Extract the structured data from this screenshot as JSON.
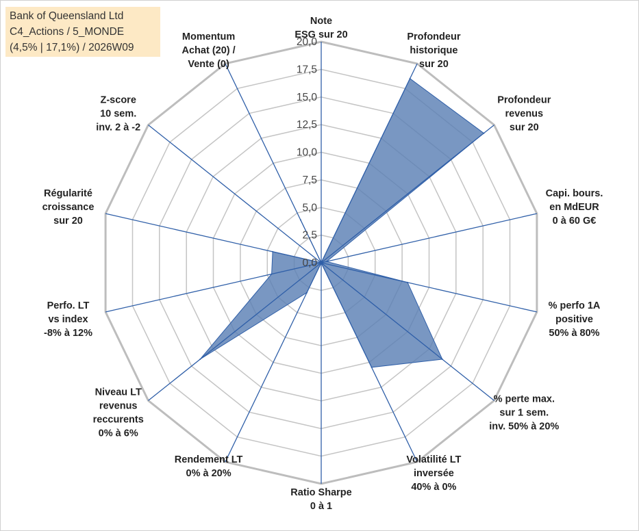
{
  "title_box": {
    "line1": "Bank of Queensland Ltd",
    "line2": "C4_Actions / 5_MONDE",
    "line3": "(4,5% | 17,1%) / 2026W09"
  },
  "colors": {
    "fill": "#5b80b5",
    "axis": "#2f5fa8",
    "grid": "#c4c4c4",
    "ring": "#bdbdbd"
  },
  "chart_data": {
    "type": "radar",
    "r_min": 0,
    "r_max": 20,
    "tick_labels": [
      "0,0",
      "2,5",
      "5,0",
      "7,5",
      "10,0",
      "12,5",
      "15,0",
      "17,5",
      "20,0"
    ],
    "axes": [
      {
        "lines": [
          "Note",
          "ESG sur 20"
        ],
        "value": 0
      },
      {
        "lines": [
          "Profondeur",
          "historique",
          "sur 20"
        ],
        "value": 18.5
      },
      {
        "lines": [
          "Profondeur",
          "revenus",
          "sur 20"
        ],
        "value": 18.8
      },
      {
        "lines": [
          "Capi. bours.",
          "en MdEUR",
          "0 à 60 G€"
        ],
        "value": 0.5
      },
      {
        "lines": [
          "% perfo 1A",
          "positive",
          "50% à 80%"
        ],
        "value": 8
      },
      {
        "lines": [
          "% perte max.",
          "sur 1 sem.",
          "inv. 50% à 20%"
        ],
        "value": 14
      },
      {
        "lines": [
          "Volatilité LT",
          "inversée",
          "40% à 0%"
        ],
        "value": 10.5
      },
      {
        "lines": [
          "Ratio Sharpe",
          "0 à 1"
        ],
        "value": 0
      },
      {
        "lines": [
          "Rendement LT",
          "0% à 20%"
        ],
        "value": 3
      },
      {
        "lines": [
          "Niveau LT",
          "revenus",
          "reccurents",
          "0% à 6%"
        ],
        "value": 14
      },
      {
        "lines": [
          "Perfo. LT",
          "vs index",
          "-8% à 12%"
        ],
        "value": 4.6
      },
      {
        "lines": [
          "Régularité",
          "croissance",
          "sur 20"
        ],
        "value": 4.5
      },
      {
        "lines": [
          "Z-score",
          "10 sem.",
          "inv. 2 à -2"
        ],
        "value": 0
      },
      {
        "lines": [
          "Momentum",
          "Achat (20) /",
          "Vente (0)"
        ],
        "value": 4.3
      }
    ]
  }
}
